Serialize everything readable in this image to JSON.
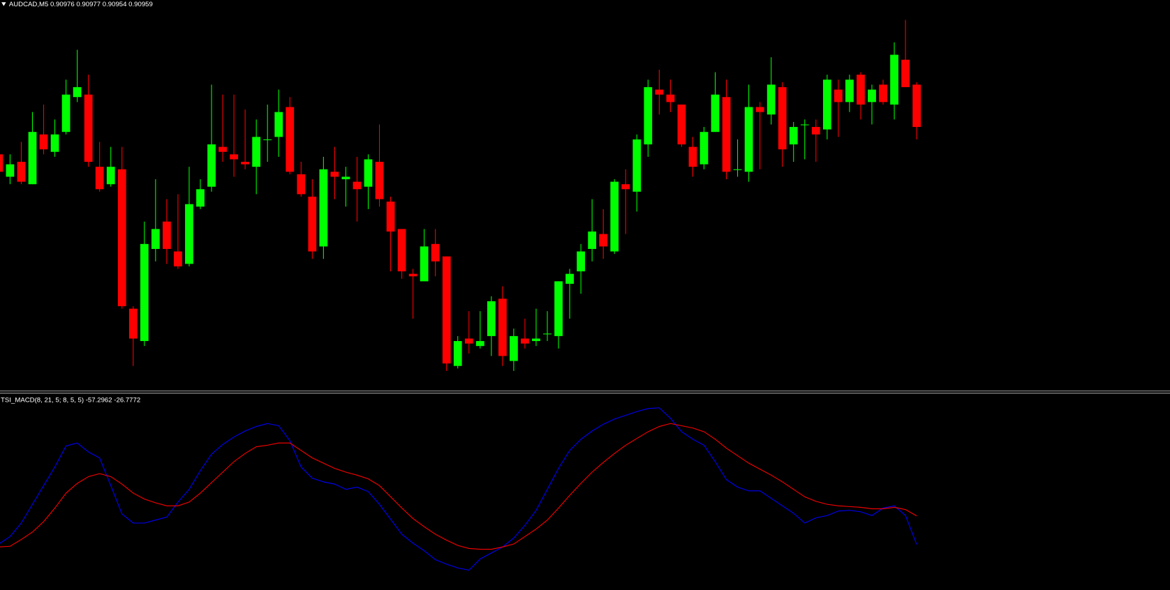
{
  "chart_data": [
    {
      "type": "candlestick",
      "title": "AUDCAD,M5  0.90976 0.90977 0.90954 0.90959",
      "up_color": "#00ff00",
      "down_color": "#ff0000",
      "ylim": [
        0.90854,
        0.9101
      ],
      "open": [
        0.90948,
        0.90939,
        0.90945,
        0.90936,
        0.90956,
        0.90949,
        0.90957,
        0.90971,
        0.90972,
        0.90943,
        0.90936,
        0.90942,
        0.90886,
        0.90873,
        0.9091,
        0.90921,
        0.90909,
        0.90904,
        0.90927,
        0.90935,
        0.90951,
        0.90948,
        0.90945,
        0.90943,
        0.90954,
        0.90955,
        0.90967,
        0.9094,
        0.90931,
        0.90911,
        0.90941,
        0.90938,
        0.90937,
        0.90935,
        0.90945,
        0.90929,
        0.90918,
        0.909,
        0.90897,
        0.90912,
        0.90907,
        0.90863,
        0.90874,
        0.90871,
        0.90875,
        0.9089,
        0.90865,
        0.90874,
        0.90873,
        0.90876,
        0.90875,
        0.90896,
        0.90901,
        0.9091,
        0.90916,
        0.90909,
        0.90936,
        0.90933,
        0.90952,
        0.90974,
        0.90972,
        0.90968,
        0.90951,
        0.90944,
        0.90957,
        0.90971,
        0.90942,
        0.90941,
        0.90967,
        0.90964,
        0.90975,
        0.90952,
        0.9096,
        0.90959,
        0.90958,
        0.90974,
        0.90969,
        0.9098,
        0.90969,
        0.90976,
        0.90968,
        0.90986,
        0.90976
      ],
      "high": [
        0.90951,
        0.90948,
        0.90953,
        0.90965,
        0.90968,
        0.90962,
        0.90978,
        0.9099,
        0.9098,
        0.90953,
        0.90951,
        0.90951,
        0.90887,
        0.90921,
        0.90938,
        0.9093,
        0.90932,
        0.90943,
        0.90938,
        0.90976,
        0.90972,
        0.90972,
        0.90966,
        0.90962,
        0.90968,
        0.90974,
        0.90971,
        0.90945,
        0.90938,
        0.90947,
        0.90951,
        0.90943,
        0.90947,
        0.90948,
        0.9096,
        0.90931,
        0.90918,
        0.90902,
        0.90918,
        0.90918,
        0.90907,
        0.90875,
        0.90885,
        0.90885,
        0.90891,
        0.90895,
        0.90878,
        0.90882,
        0.90886,
        0.90885,
        0.90897,
        0.90902,
        0.90912,
        0.9093,
        0.90926,
        0.90938,
        0.90942,
        0.90956,
        0.90978,
        0.90982,
        0.90978,
        0.90968,
        0.90955,
        0.90959,
        0.90981,
        0.90978,
        0.90954,
        0.90976,
        0.90969,
        0.90987,
        0.90977,
        0.90961,
        0.90962,
        0.90962,
        0.9098,
        0.90978,
        0.9098,
        0.90981,
        0.90976,
        0.90978,
        0.90993,
        0.91002,
        0.90977
      ],
      "low": [
        0.90936,
        0.90936,
        0.90936,
        0.90936,
        0.90948,
        0.90947,
        0.90956,
        0.90969,
        0.90943,
        0.90933,
        0.90935,
        0.90886,
        0.90863,
        0.90871,
        0.90905,
        0.90904,
        0.90902,
        0.90903,
        0.90926,
        0.90933,
        0.90945,
        0.90939,
        0.90942,
        0.90932,
        0.90945,
        0.90947,
        0.9094,
        0.90931,
        0.90906,
        0.90906,
        0.9093,
        0.90927,
        0.90921,
        0.90926,
        0.90927,
        0.90901,
        0.90898,
        0.90882,
        0.90897,
        0.90899,
        0.90861,
        0.90862,
        0.90868,
        0.9087,
        0.90867,
        0.90863,
        0.90861,
        0.9087,
        0.90871,
        0.90873,
        0.9087,
        0.90882,
        0.90892,
        0.90905,
        0.90906,
        0.90908,
        0.90916,
        0.90925,
        0.90947,
        0.90964,
        0.90965,
        0.90951,
        0.90939,
        0.90942,
        0.90957,
        0.90938,
        0.90939,
        0.90937,
        0.90942,
        0.9096,
        0.90943,
        0.90945,
        0.90946,
        0.90945,
        0.90954,
        0.90955,
        0.90965,
        0.90962,
        0.9096,
        0.90968,
        0.90962,
        0.90975,
        0.90954
      ],
      "close": [
        0.90941,
        0.90944,
        0.90937,
        0.90957,
        0.9095,
        0.90956,
        0.90972,
        0.90975,
        0.90945,
        0.90934,
        0.90943,
        0.90887,
        0.90874,
        0.90912,
        0.90918,
        0.9091,
        0.90903,
        0.90928,
        0.90934,
        0.90952,
        0.90949,
        0.90946,
        0.90944,
        0.90955,
        0.90954,
        0.90965,
        0.90941,
        0.90932,
        0.90909,
        0.90942,
        0.90939,
        0.90939,
        0.90934,
        0.90946,
        0.9093,
        0.90917,
        0.90901,
        0.90899,
        0.90911,
        0.90905,
        0.90864,
        0.90873,
        0.90872,
        0.90873,
        0.90889,
        0.90867,
        0.90875,
        0.90872,
        0.90874,
        0.90876,
        0.90897,
        0.909,
        0.90909,
        0.90917,
        0.90911,
        0.90937,
        0.90934,
        0.90954,
        0.90975,
        0.90972,
        0.90969,
        0.90952,
        0.90943,
        0.90957,
        0.90972,
        0.90941,
        0.90942,
        0.90967,
        0.90965,
        0.90976,
        0.9095,
        0.90959,
        0.9096,
        0.90956,
        0.90978,
        0.90969,
        0.90978,
        0.90968,
        0.90974,
        0.90969,
        0.90988,
        0.90975,
        0.90959
      ]
    },
    {
      "type": "line",
      "title": "TSI_MACD(8, 21, 5; 8, 5, 5) -57.2962 -26.7772",
      "ylim": [
        -106,
        104
      ],
      "series": [
        {
          "color": "#0000ff",
          "values": [
            -56.8,
            -48.8,
            -34.4,
            -14.4,
            5.6,
            25.6,
            48,
            51.2,
            41.6,
            35.2,
            5.6,
            -24.8,
            -34.4,
            -34.4,
            -31.2,
            -28,
            -12,
            1.6,
            21.6,
            39.2,
            49.6,
            57.6,
            64,
            68.8,
            72,
            69.6,
            53.6,
            25.6,
            13.6,
            9.6,
            7.2,
            1.6,
            4,
            -0.8,
            -14.4,
            -30.4,
            -46.4,
            -56,
            -64,
            -73.6,
            -78.4,
            -82.4,
            -84.8,
            -72.8,
            -66.4,
            -60,
            -50.4,
            -36.8,
            -20.8,
            1.6,
            24,
            43.2,
            55.2,
            64,
            71.2,
            76.8,
            80.8,
            84.8,
            88,
            88.8,
            77.6,
            63.2,
            55.2,
            48.8,
            31.2,
            12,
            4,
            0,
            0,
            -8,
            -16,
            -24,
            -34.4,
            -28.8,
            -26.4,
            -21.6,
            -20.8,
            -22.4,
            -26.4,
            -18.4,
            -16,
            -26.4,
            -57.2962
          ]
        },
        {
          "color": "#ff0000",
          "values": [
            -60,
            -59.2,
            -52,
            -44,
            -32.8,
            -18.4,
            -2.4,
            8,
            15.2,
            18.4,
            15.2,
            7.2,
            -2.4,
            -8.8,
            -12.8,
            -16,
            -16,
            -12,
            -2.4,
            8.8,
            20,
            31.2,
            40,
            47.2,
            48.8,
            51.2,
            51.2,
            43.2,
            35.2,
            29.6,
            24,
            20,
            16.8,
            12.8,
            5.6,
            -6.4,
            -18.4,
            -29.6,
            -38.4,
            -46.4,
            -52.8,
            -58.4,
            -61.6,
            -62.4,
            -62.4,
            -60,
            -56.8,
            -48.8,
            -40.8,
            -31.2,
            -18.4,
            -4.8,
            8,
            20,
            30.4,
            40,
            48.8,
            56,
            63.2,
            68.8,
            72,
            69.6,
            67.2,
            63.2,
            55.2,
            45.6,
            37.6,
            29.6,
            23.2,
            16.8,
            9.6,
            1.6,
            -6.4,
            -11.2,
            -14.4,
            -16,
            -16.8,
            -17.6,
            -19.2,
            -19.2,
            -17.6,
            -20,
            -26.7772
          ]
        }
      ]
    }
  ]
}
